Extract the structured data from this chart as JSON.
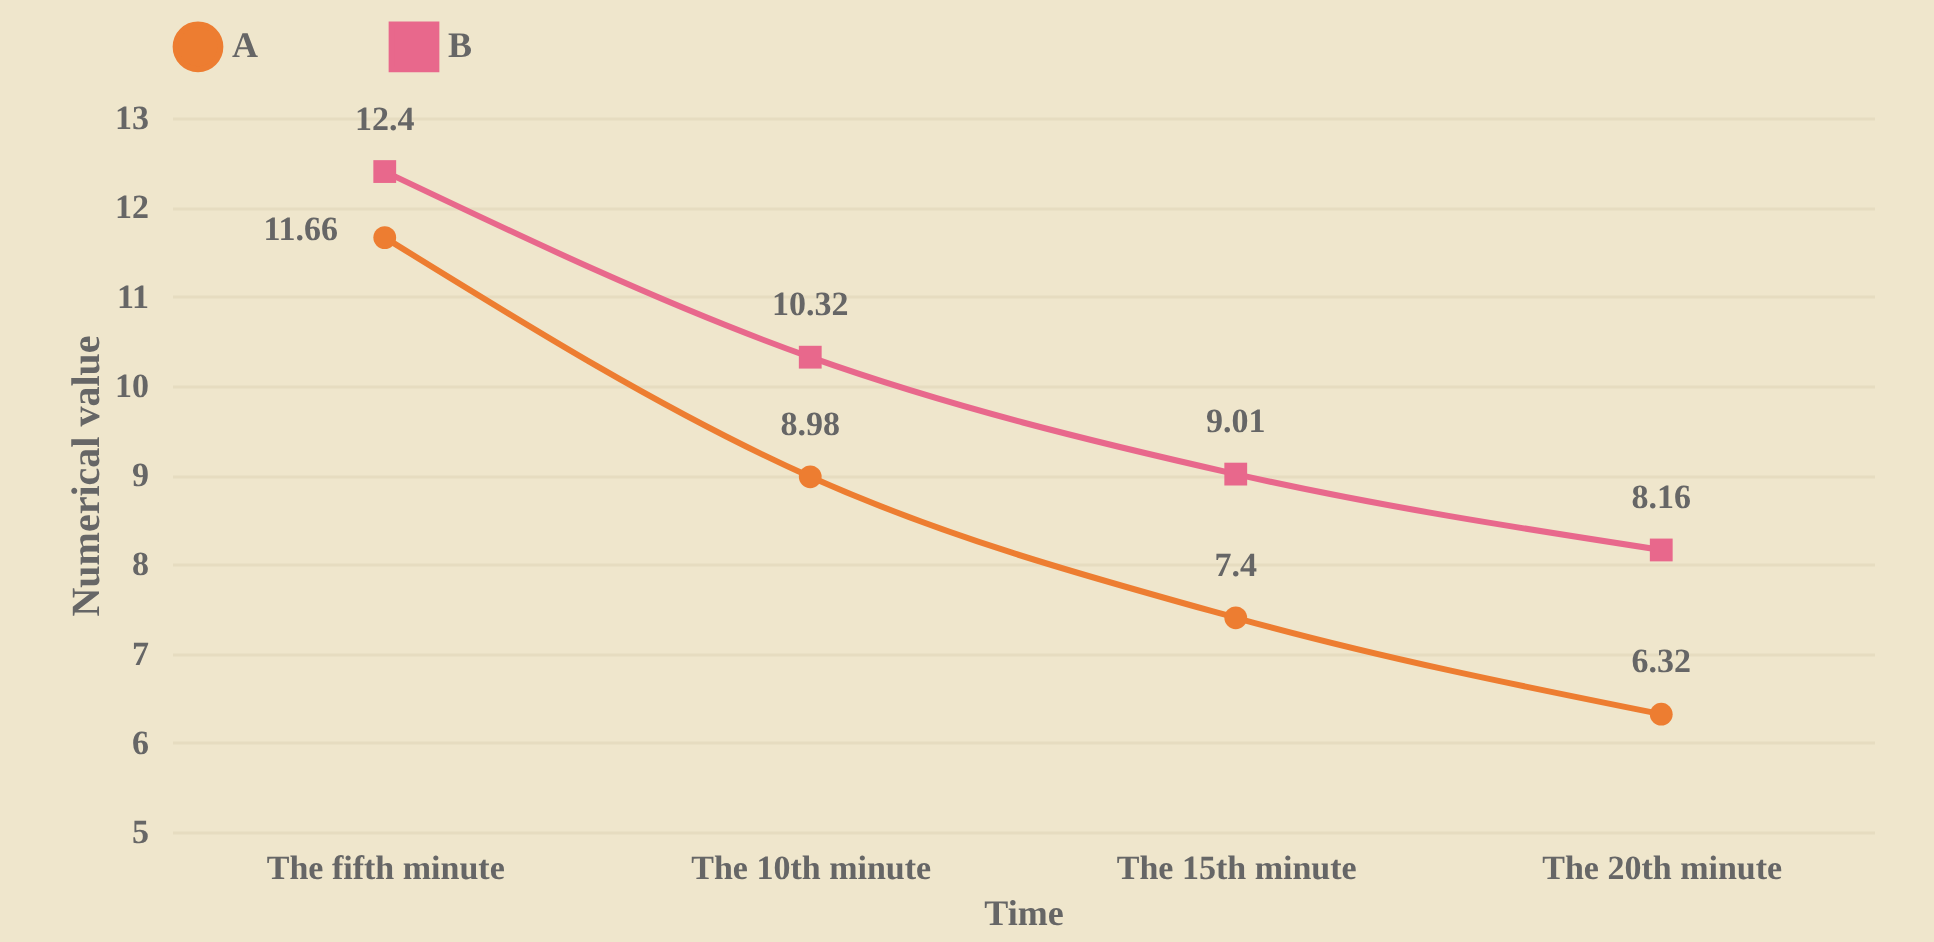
{
  "chart_data": {
    "type": "line",
    "xlabel": "Time",
    "ylabel": "Numerical value",
    "categories": [
      "The fifth minute",
      "The 10th minute",
      "The 15th minute",
      "The 20th minute"
    ],
    "series": [
      {
        "name": "A",
        "color": "#ed7d31",
        "values": [
          11.66,
          8.98,
          7.4,
          6.32
        ],
        "marker": "circle"
      },
      {
        "name": "B",
        "color": "#e8688c",
        "values": [
          12.4,
          10.32,
          9.01,
          8.16
        ],
        "marker": "square"
      }
    ],
    "ylim": [
      5,
      13
    ],
    "yticks": [
      5,
      6,
      7,
      8,
      9,
      10,
      11,
      12,
      13
    ],
    "grid": "y",
    "legend": "top",
    "data_labels": true
  }
}
